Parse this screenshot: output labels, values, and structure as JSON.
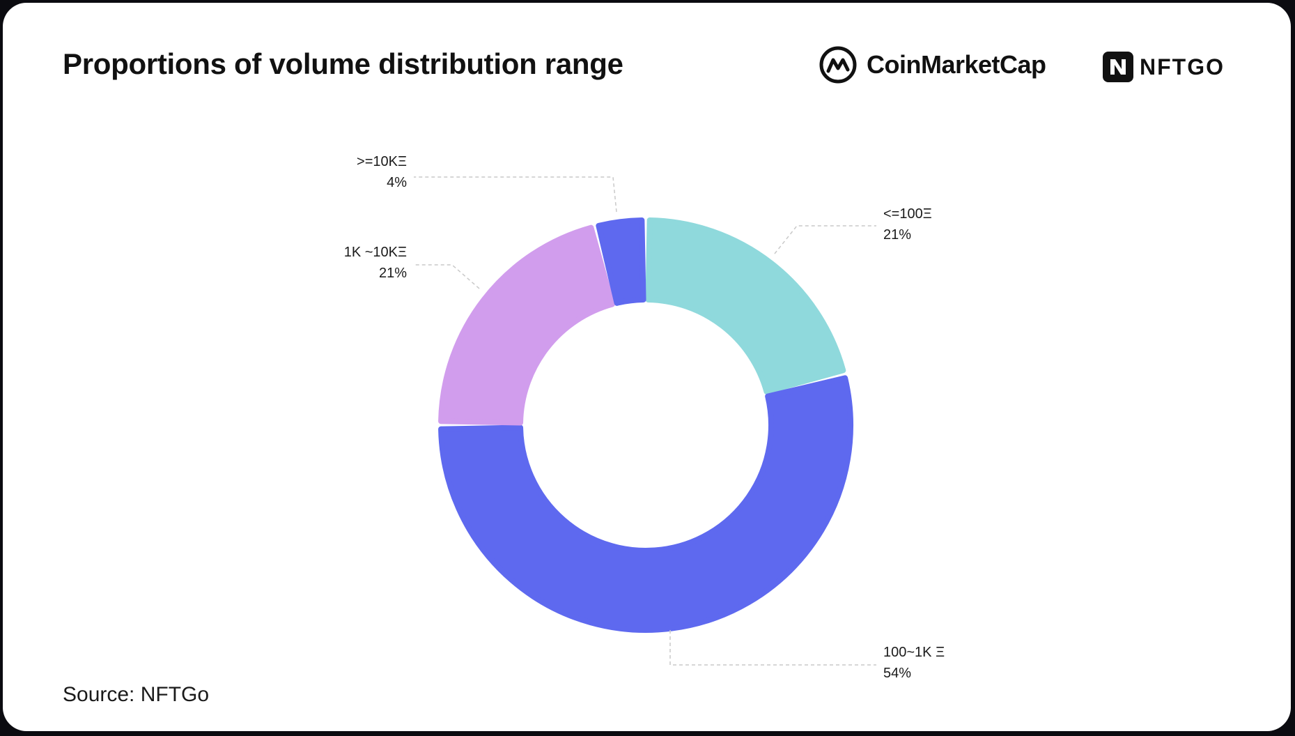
{
  "title": "Proportions of volume distribution range",
  "source": "Source: NFTGo",
  "logos": {
    "coinmarketcap": {
      "name": "CoinMarketCap",
      "icon": "coinmarketcap-logo-icon",
      "color": "#111111"
    },
    "nftgo": {
      "name": "NFTGO",
      "icon": "nftgo-logo-icon",
      "color": "#111111"
    }
  },
  "chart_data": {
    "type": "pie",
    "variant": "donut",
    "title": "Proportions of volume distribution range",
    "categories": [
      "<=100Ξ",
      "100~1K Ξ",
      "1K ~10KΞ",
      ">=10KΞ"
    ],
    "values": [
      21,
      54,
      21,
      4
    ],
    "labels": [
      "21%",
      "54%",
      "21%",
      "4%"
    ],
    "colors": [
      "#8fd9dc",
      "#5e69ef",
      "#d19ded",
      "#5e69ef"
    ],
    "legend": "none",
    "start": "top",
    "direction": "clockwise"
  }
}
